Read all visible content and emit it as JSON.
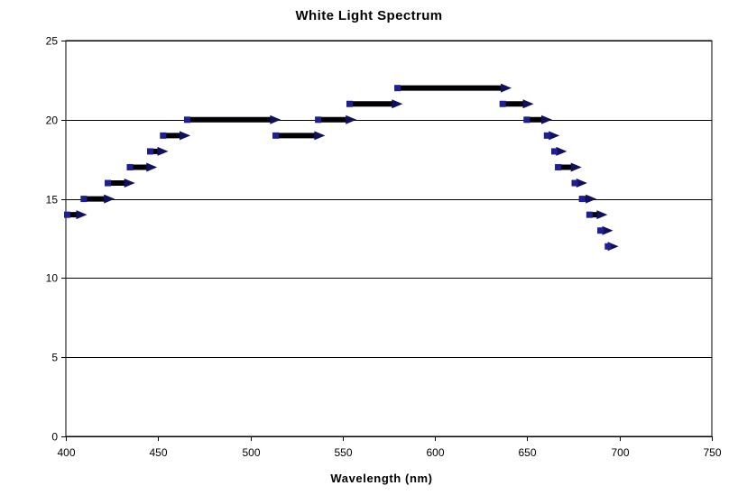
{
  "chart": {
    "title": "White Light Spectrum",
    "x_axis_label": "Wavelength (nm)"
  },
  "chart_data": {
    "type": "line",
    "subtype": "horizontal-step-arrow-segments",
    "title": "White Light Spectrum",
    "xlabel": "Wavelength (nm)",
    "ylabel": "",
    "xlim": [
      400,
      750
    ],
    "ylim": [
      0,
      25
    ],
    "x_ticks": [
      400,
      450,
      500,
      550,
      600,
      650,
      700,
      750
    ],
    "y_ticks": [
      0,
      5,
      10,
      15,
      20,
      25
    ],
    "grid": "horizontal",
    "legend": "none",
    "segments": [
      {
        "x1": 400,
        "x2": 411,
        "y": 14
      },
      {
        "x1": 409,
        "x2": 426,
        "y": 15
      },
      {
        "x1": 422,
        "x2": 437,
        "y": 16
      },
      {
        "x1": 434,
        "x2": 449,
        "y": 17
      },
      {
        "x1": 445,
        "x2": 455,
        "y": 18
      },
      {
        "x1": 452,
        "x2": 467,
        "y": 19
      },
      {
        "x1": 465,
        "x2": 516,
        "y": 20
      },
      {
        "x1": 513,
        "x2": 540,
        "y": 19
      },
      {
        "x1": 536,
        "x2": 557,
        "y": 20
      },
      {
        "x1": 553,
        "x2": 582,
        "y": 21
      },
      {
        "x1": 579,
        "x2": 641,
        "y": 22
      },
      {
        "x1": 636,
        "x2": 653,
        "y": 21
      },
      {
        "x1": 649,
        "x2": 663,
        "y": 20
      },
      {
        "x1": 660,
        "x2": 667,
        "y": 19
      },
      {
        "x1": 664,
        "x2": 671,
        "y": 18
      },
      {
        "x1": 666,
        "x2": 679,
        "y": 17
      },
      {
        "x1": 675,
        "x2": 682,
        "y": 16
      },
      {
        "x1": 679,
        "x2": 687,
        "y": 15
      },
      {
        "x1": 683,
        "x2": 693,
        "y": 14
      },
      {
        "x1": 689,
        "x2": 696,
        "y": 13
      },
      {
        "x1": 693,
        "x2": 699,
        "y": 12
      }
    ],
    "colors": {
      "segment_bar": "#000005",
      "marker_square": "#1e1e96",
      "arrow_head": "#10105e",
      "grid_line": "#000000",
      "axis_line": "#000000",
      "text": "#000000",
      "background": "#ffffff"
    }
  }
}
